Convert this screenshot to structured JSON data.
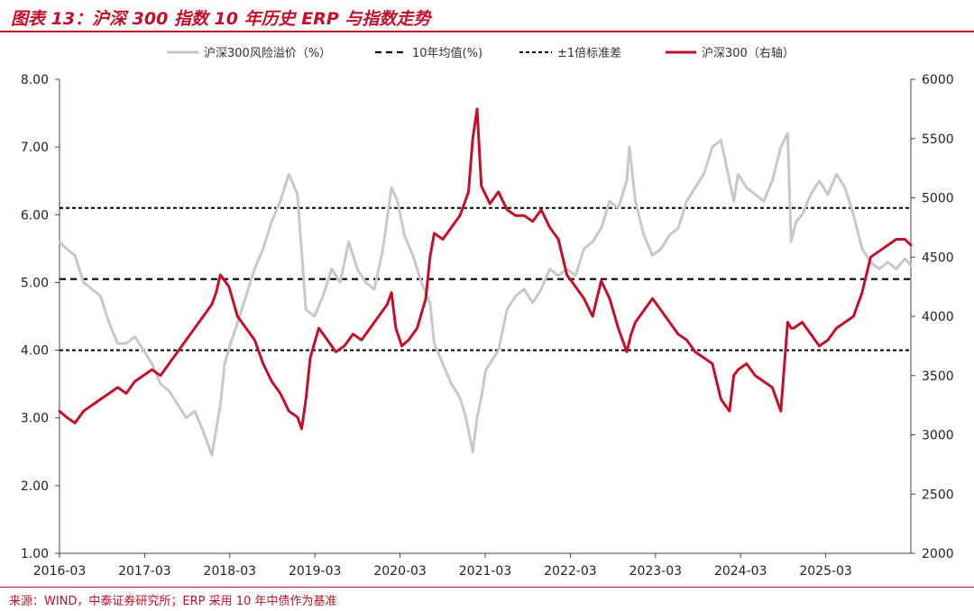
{
  "figure": {
    "title": "图表 13：沪深 300 指数 10 年历史 ERP 与指数走势",
    "source": "来源：WIND，中泰证券研究所；ERP 采用 10 年中债作为基准"
  },
  "colors": {
    "accent": "#c0102a",
    "erp": "#c8c8c8",
    "index": "#c0102a",
    "reference": "#000000",
    "axis": "#444444"
  },
  "chart_data": {
    "type": "line",
    "title": "",
    "x_tick_labels": [
      "2016-03",
      "2017-03",
      "2018-03",
      "2019-03",
      "2020-03",
      "2021-03",
      "2022-03",
      "2023-03",
      "2024-03",
      "2025-03"
    ],
    "x_start": 2016.17,
    "x_end": 2026.12,
    "y_left": {
      "label": "",
      "min": 1,
      "max": 8,
      "step": 1,
      "tick_labels": [
        "1.00",
        "2.00",
        "3.00",
        "4.00",
        "5.00",
        "6.00",
        "7.00",
        "8.00"
      ]
    },
    "y_right": {
      "label": "",
      "min": 2000,
      "max": 6000,
      "step": 500,
      "tick_labels": [
        "2000",
        "2500",
        "3000",
        "3500",
        "4000",
        "4500",
        "5000",
        "5500",
        "6000"
      ]
    },
    "legend_position": "top-center",
    "legend": {
      "erp": "沪深300风险溢价（%）",
      "mean": "10年均值(%)",
      "band": "±1倍标准差",
      "index": "沪深300（右轴）"
    },
    "reference_lines": {
      "mean": 5.05,
      "upper": 6.1,
      "lower": 4.0
    },
    "series": [
      {
        "name": "沪深300风险溢价（%）",
        "axis": "left",
        "style": "solid",
        "x": [
          2016.17,
          2016.25,
          2016.35,
          2016.45,
          2016.55,
          2016.65,
          2016.75,
          2016.85,
          2016.95,
          2017.05,
          2017.15,
          2017.25,
          2017.35,
          2017.45,
          2017.55,
          2017.65,
          2017.75,
          2017.85,
          2017.95,
          2018.05,
          2018.1,
          2018.17,
          2018.25,
          2018.35,
          2018.45,
          2018.55,
          2018.65,
          2018.75,
          2018.85,
          2018.95,
          2019.05,
          2019.15,
          2019.25,
          2019.35,
          2019.45,
          2019.55,
          2019.65,
          2019.75,
          2019.85,
          2019.95,
          2020.05,
          2020.12,
          2020.2,
          2020.3,
          2020.4,
          2020.5,
          2020.55,
          2020.65,
          2020.75,
          2020.85,
          2020.92,
          2021.0,
          2021.05,
          2021.1,
          2021.15,
          2021.2,
          2021.3,
          2021.4,
          2021.5,
          2021.6,
          2021.7,
          2021.8,
          2021.9,
          2022.0,
          2022.1,
          2022.2,
          2022.3,
          2022.4,
          2022.5,
          2022.6,
          2022.7,
          2022.8,
          2022.83,
          2022.9,
          2023.0,
          2023.1,
          2023.2,
          2023.3,
          2023.4,
          2023.5,
          2023.6,
          2023.7,
          2023.8,
          2023.9,
          2024.0,
          2024.05,
          2024.1,
          2024.2,
          2024.3,
          2024.4,
          2024.5,
          2024.6,
          2024.68,
          2024.72,
          2024.78,
          2024.85,
          2024.95,
          2025.05,
          2025.15,
          2025.25,
          2025.35,
          2025.45,
          2025.55,
          2025.65,
          2025.75,
          2025.85,
          2025.95,
          2026.05,
          2026.12
        ],
        "values": [
          5.6,
          5.5,
          5.4,
          5.0,
          4.9,
          4.8,
          4.4,
          4.1,
          4.1,
          4.2,
          4.0,
          3.8,
          3.5,
          3.4,
          3.2,
          3.0,
          3.1,
          2.8,
          2.45,
          3.2,
          3.8,
          4.1,
          4.4,
          4.8,
          5.2,
          5.5,
          5.9,
          6.2,
          6.6,
          6.3,
          4.6,
          4.5,
          4.8,
          5.2,
          5.0,
          5.6,
          5.2,
          5.0,
          4.9,
          5.5,
          6.4,
          6.2,
          5.7,
          5.4,
          5.0,
          4.7,
          4.1,
          3.8,
          3.5,
          3.3,
          3.0,
          2.5,
          3.0,
          3.3,
          3.7,
          3.8,
          4.0,
          4.6,
          4.8,
          4.9,
          4.7,
          4.9,
          5.2,
          5.1,
          5.2,
          5.1,
          5.5,
          5.6,
          5.8,
          6.2,
          6.1,
          6.5,
          7.0,
          6.2,
          5.7,
          5.4,
          5.5,
          5.7,
          5.8,
          6.2,
          6.4,
          6.6,
          7.0,
          7.1,
          6.5,
          6.2,
          6.6,
          6.4,
          6.3,
          6.2,
          6.5,
          7.0,
          7.2,
          5.6,
          5.9,
          6.0,
          6.3,
          6.5,
          6.3,
          6.6,
          6.4,
          6.0,
          5.5,
          5.3,
          5.2,
          5.3,
          5.2,
          5.35,
          5.25
        ]
      },
      {
        "name": "沪深300（右轴）",
        "axis": "right",
        "style": "solid",
        "x": [
          2016.17,
          2016.25,
          2016.35,
          2016.45,
          2016.55,
          2016.65,
          2016.75,
          2016.85,
          2016.95,
          2017.05,
          2017.15,
          2017.25,
          2017.35,
          2017.45,
          2017.55,
          2017.65,
          2017.75,
          2017.85,
          2017.9,
          2017.95,
          2018.0,
          2018.05,
          2018.15,
          2018.25,
          2018.35,
          2018.45,
          2018.55,
          2018.65,
          2018.75,
          2018.85,
          2018.95,
          2019.0,
          2019.05,
          2019.1,
          2019.2,
          2019.3,
          2019.4,
          2019.5,
          2019.6,
          2019.7,
          2019.8,
          2019.9,
          2020.0,
          2020.05,
          2020.1,
          2020.17,
          2020.25,
          2020.35,
          2020.45,
          2020.5,
          2020.55,
          2020.65,
          2020.75,
          2020.85,
          2020.9,
          2020.95,
          2021.0,
          2021.05,
          2021.1,
          2021.2,
          2021.3,
          2021.4,
          2021.5,
          2021.6,
          2021.7,
          2021.8,
          2021.9,
          2022.0,
          2022.1,
          2022.2,
          2022.3,
          2022.4,
          2022.5,
          2022.6,
          2022.7,
          2022.8,
          2022.85,
          2022.9,
          2023.0,
          2023.1,
          2023.2,
          2023.3,
          2023.4,
          2023.5,
          2023.6,
          2023.7,
          2023.8,
          2023.9,
          2024.0,
          2024.05,
          2024.1,
          2024.2,
          2024.3,
          2024.4,
          2024.5,
          2024.6,
          2024.68,
          2024.72,
          2024.75,
          2024.85,
          2024.95,
          2025.05,
          2025.15,
          2025.25,
          2025.35,
          2025.45,
          2025.55,
          2025.65,
          2025.75,
          2025.85,
          2025.95,
          2026.05,
          2026.12
        ],
        "values": [
          3200,
          3150,
          3100,
          3200,
          3250,
          3300,
          3350,
          3400,
          3350,
          3450,
          3500,
          3550,
          3500,
          3600,
          3700,
          3800,
          3900,
          4000,
          4050,
          4100,
          4200,
          4350,
          4250,
          4000,
          3900,
          3800,
          3600,
          3450,
          3350,
          3200,
          3150,
          3050,
          3300,
          3650,
          3900,
          3800,
          3700,
          3750,
          3850,
          3800,
          3900,
          4000,
          4100,
          4200,
          3900,
          3750,
          3800,
          3900,
          4150,
          4500,
          4700,
          4650,
          4750,
          4850,
          4950,
          5050,
          5500,
          5750,
          5100,
          4950,
          5050,
          4900,
          4850,
          4850,
          4800,
          4900,
          4750,
          4650,
          4350,
          4250,
          4150,
          4000,
          4300,
          4150,
          3900,
          3700,
          3850,
          3950,
          4050,
          4150,
          4050,
          3950,
          3850,
          3800,
          3700,
          3650,
          3600,
          3300,
          3200,
          3500,
          3550,
          3600,
          3500,
          3450,
          3400,
          3200,
          3950,
          3900,
          3900,
          3950,
          3850,
          3750,
          3800,
          3900,
          3950,
          4000,
          4200,
          4500,
          4550,
          4600,
          4650,
          4650,
          4600
        ]
      }
    ]
  }
}
